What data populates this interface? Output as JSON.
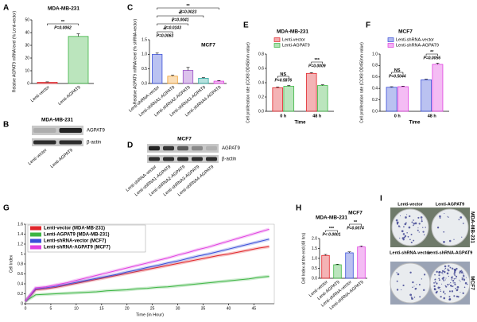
{
  "chart_data": [
    {
      "panel": "A",
      "type": "bar",
      "title": "MDA-MB-231",
      "y_label": "Relative AGPAT9 mRNA level (% Lenti-vector)",
      "categories": [
        "Lenti-vector",
        "Lenti-AGPAT9"
      ],
      "values": [
        1,
        37
      ],
      "errors": [
        0.3,
        2
      ],
      "colors": [
        "#e0262b",
        "#3db543"
      ],
      "ylim": [
        0,
        50
      ],
      "yticks": [
        0,
        10,
        20,
        30,
        40,
        50
      ],
      "annotations": [
        {
          "stars": "**",
          "p": "P=0.0062"
        }
      ]
    },
    {
      "panel": "C",
      "type": "bar",
      "title": "MCF7",
      "y_label": "Relative AGPAT9 mRNA level (% shRNA-vector)",
      "categories": [
        "Lenti-shRNA-vector",
        "Lenti-shRNA1-AGPAT9",
        "Lenti-shRNA2-AGPAT9",
        "Lenti-shRNA3-AGPAT9",
        "Lenti-shRNA4-AGPAT9"
      ],
      "values": [
        1.0,
        0.25,
        0.45,
        0.18,
        0.08
      ],
      "errors": [
        0.05,
        0.03,
        0.1,
        0.02,
        0.02
      ],
      "colors": [
        "#3a4fd8",
        "#f0a030",
        "#9b4fc8",
        "#2aa8a0",
        "#e040e0"
      ],
      "ylim": [
        0,
        1.5
      ],
      "yticks": [
        {
          "value": 0,
          "label": "0.0"
        },
        0.5,
        {
          "value": 1,
          "label": "1.0"
        },
        1.5
      ],
      "annotations": [
        {
          "stars": "**",
          "p": "P=0.0023"
        },
        {
          "stars": "**",
          "p": "P=0.0041"
        },
        {
          "stars": "*",
          "p": "P=0.0143"
        },
        {
          "stars": "**",
          "p": "P=0.0063"
        }
      ]
    },
    {
      "panel": "E",
      "type": "grouped_bar",
      "title": "MDA-MB-231",
      "x_label": "Time",
      "y_label": "Cell proliferation rate (CCK8 OD450nm value)",
      "categories": [
        "0 h",
        "48 h"
      ],
      "series": [
        {
          "name": "Lenti-vector",
          "color": "#e0262b",
          "values": [
            0.33,
            0.53
          ],
          "errors": [
            0.01,
            0.01
          ]
        },
        {
          "name": "Lenti-AGPAT9",
          "color": "#3db543",
          "values": [
            0.35,
            0.36
          ],
          "errors": [
            0.01,
            0.01
          ]
        }
      ],
      "ylim": [
        0,
        0.8
      ],
      "yticks": [
        {
          "value": 0,
          "label": "0.0"
        },
        0.2,
        0.4,
        0.6,
        0.8
      ],
      "annotations": [
        {
          "stars": "NS",
          "p": "P=0.5876"
        },
        {
          "stars": "***",
          "p": "P=0.0009"
        }
      ]
    },
    {
      "panel": "F",
      "type": "grouped_bar",
      "title": "MCF7",
      "x_label": "Time",
      "y_label": "Cell proliferation rate (CCK8 OD450nm value)",
      "categories": [
        "0 h",
        "48 h"
      ],
      "series": [
        {
          "name": "Lenti-shRNA-vector",
          "color": "#3a4fd8",
          "values": [
            0.42,
            0.55
          ],
          "errors": [
            0.01,
            0.01
          ]
        },
        {
          "name": "Lenti-shRNA-AGPAT9",
          "color": "#e040e0",
          "values": [
            0.43,
            0.82
          ],
          "errors": [
            0.01,
            0.02
          ]
        }
      ],
      "ylim": [
        0,
        1
      ],
      "yticks": [
        {
          "value": 0,
          "label": "0.0"
        },
        0.2,
        0.4,
        0.6,
        0.8,
        {
          "value": 1,
          "label": "1.0"
        }
      ],
      "annotations": [
        {
          "stars": "NS",
          "p": "P=0.5044"
        },
        {
          "stars": "**",
          "p": "P=0.0056"
        }
      ]
    },
    {
      "panel": "G",
      "type": "line",
      "x_label": "Time (in Hour)",
      "y_label": "Cell Index",
      "x": [
        0,
        2,
        4,
        6,
        8,
        10,
        12,
        14,
        16,
        18,
        20,
        22,
        24,
        26,
        28,
        30,
        32,
        34,
        36,
        38,
        40,
        42,
        44,
        46,
        48
      ],
      "series": [
        {
          "name": "Lenti-vector (MDA-MB-231)",
          "color": "#e0262b",
          "values": [
            0.05,
            0.28,
            0.3,
            0.33,
            0.37,
            0.41,
            0.45,
            0.49,
            0.53,
            0.57,
            0.61,
            0.65,
            0.69,
            0.73,
            0.77,
            0.81,
            0.85,
            0.89,
            0.93,
            0.97,
            1.0,
            1.04,
            1.08,
            1.12,
            1.15
          ]
        },
        {
          "name": "Lenti-AGPAT9 (MDA-MB-231)",
          "color": "#3db543",
          "values": [
            0.05,
            0.18,
            0.19,
            0.2,
            0.21,
            0.22,
            0.23,
            0.24,
            0.26,
            0.27,
            0.28,
            0.3,
            0.31,
            0.33,
            0.34,
            0.36,
            0.38,
            0.4,
            0.42,
            0.44,
            0.46,
            0.48,
            0.5,
            0.53,
            0.55
          ]
        },
        {
          "name": "Lenti-shRNA-vector (MCF7)",
          "color": "#3a4fd8",
          "values": [
            0.05,
            0.3,
            0.32,
            0.35,
            0.39,
            0.43,
            0.47,
            0.51,
            0.55,
            0.59,
            0.64,
            0.68,
            0.73,
            0.77,
            0.82,
            0.86,
            0.91,
            0.96,
            1.0,
            1.05,
            1.1,
            1.15,
            1.2,
            1.25,
            1.3
          ]
        },
        {
          "name": "Lenti-shRNA-AGPAT9 (MCF7)",
          "color": "#e040e0",
          "values": [
            0.05,
            0.32,
            0.34,
            0.38,
            0.42,
            0.47,
            0.52,
            0.57,
            0.62,
            0.67,
            0.72,
            0.77,
            0.82,
            0.87,
            0.92,
            0.98,
            1.03,
            1.09,
            1.14,
            1.2,
            1.26,
            1.32,
            1.38,
            1.44,
            1.5
          ]
        }
      ],
      "xlim": [
        0,
        49
      ],
      "xticks": [
        0,
        5,
        10,
        15,
        20,
        25,
        30,
        35,
        40,
        45
      ],
      "ylim": [
        0,
        1.6
      ],
      "yticks": [
        0,
        0.2,
        0.4,
        0.6,
        0.8,
        1,
        1.2,
        1.4,
        1.6
      ]
    },
    {
      "panel": "H",
      "type": "bar",
      "group_labels": [
        "MDA-MB-231",
        "MCF7"
      ],
      "y_label": "Cell Index at the end (48 hrs)",
      "categories": [
        "Lenti-vector",
        "Lenti-AGPAT9",
        "Lenti-shRNA-vector",
        "Lenti-shRNA-AGPAT9"
      ],
      "values": [
        1.15,
        0.68,
        1.28,
        1.58
      ],
      "errors": [
        0.05,
        0.03,
        0.05,
        0.05
      ],
      "colors": [
        "#e0262b",
        "#3db543",
        "#3a4fd8",
        "#e040e0"
      ],
      "ylim": [
        0,
        2
      ],
      "yticks": [
        {
          "value": 0,
          "label": "0.0"
        },
        0.5,
        {
          "value": 1,
          "label": "1.0"
        },
        1.5,
        {
          "value": 2,
          "label": "2.0"
        }
      ],
      "annotations": [
        {
          "stars": "***",
          "p": "P< 0.0001"
        },
        {
          "stars": "**",
          "p": "P=0.0074"
        }
      ]
    }
  ],
  "blots": [
    {
      "panel": "B",
      "title": "MDA-MB-231",
      "rows": [
        "AGPAT9",
        "β-actin"
      ],
      "lanes": [
        "Lenti-vector",
        "Lenti-AGPAT9"
      ]
    },
    {
      "panel": "D",
      "title": "MCF7",
      "rows": [
        "AGPAT9",
        "β-actin"
      ],
      "lanes": [
        "Lenti-shRNA-vector",
        "Lenti-shRNA1-AGPAT9",
        "Lenti-shRNA2-AGPAT9",
        "Lenti-shRNA3-AGPAT9",
        "Lenti-shRNA4-AGPAT9"
      ]
    }
  ],
  "plates": {
    "panel": "I",
    "rows": [
      {
        "cell_line": "MDA-MB-231",
        "labels": [
          "Lenti-vector",
          "Lenti-AGPAT9"
        ]
      },
      {
        "cell_line": "MCF7",
        "labels": [
          "Lenti-shRNA-vector",
          "Lenti-shRNA-AGPAT9"
        ]
      }
    ]
  }
}
